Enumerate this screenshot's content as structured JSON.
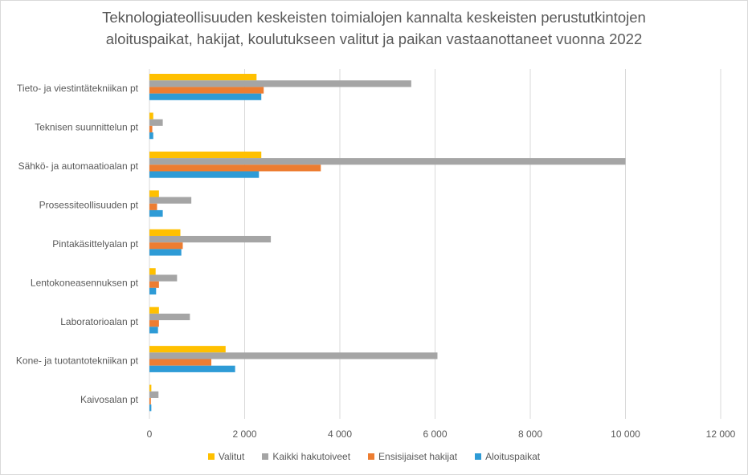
{
  "chart_data": {
    "type": "bar",
    "orientation": "horizontal",
    "title_lines": [
      "Teknologiateollisuuden keskeisten toimialojen kannalta keskeisten perustutkintojen",
      "aloituspaikat, hakijat, koulutukseen valitut ja paikan vastaanottaneet vuonna 2022"
    ],
    "categories": [
      "Tieto- ja viestintätekniikan pt",
      "Teknisen suunnittelun pt",
      "Sähkö- ja automaatioalan pt",
      "Prosessiteollisuuden pt",
      "Pintakäsittelyalan pt",
      "Lentokoneasennuksen pt",
      "Laboratorioalan pt",
      "Kone- ja tuotantotekniikan pt",
      "Kaivosalan pt"
    ],
    "series": [
      {
        "name": "Valitut",
        "color": "#FFC000",
        "values": [
          2250,
          80,
          2350,
          200,
          650,
          130,
          200,
          1600,
          40
        ]
      },
      {
        "name": "Kaikki hakutoiveet",
        "color": "#A5A5A5",
        "values": [
          5500,
          280,
          10000,
          880,
          2550,
          580,
          850,
          6050,
          190
        ]
      },
      {
        "name": "Ensisijaiset hakijat",
        "color": "#ED7D31",
        "values": [
          2400,
          60,
          3600,
          160,
          700,
          200,
          200,
          1300,
          30
        ]
      },
      {
        "name": "Aloituspaikat",
        "color": "#2E9BD6",
        "values": [
          2350,
          80,
          2300,
          280,
          670,
          140,
          180,
          1800,
          40
        ]
      }
    ],
    "xlim": [
      0,
      12000
    ],
    "xticks": [
      0,
      2000,
      4000,
      6000,
      8000,
      10000,
      12000
    ],
    "xtick_labels": [
      "0",
      "2 000",
      "4 000",
      "6 000",
      "8 000",
      "10 000",
      "12 000"
    ],
    "grid": "vertical",
    "legend_position": "bottom"
  }
}
